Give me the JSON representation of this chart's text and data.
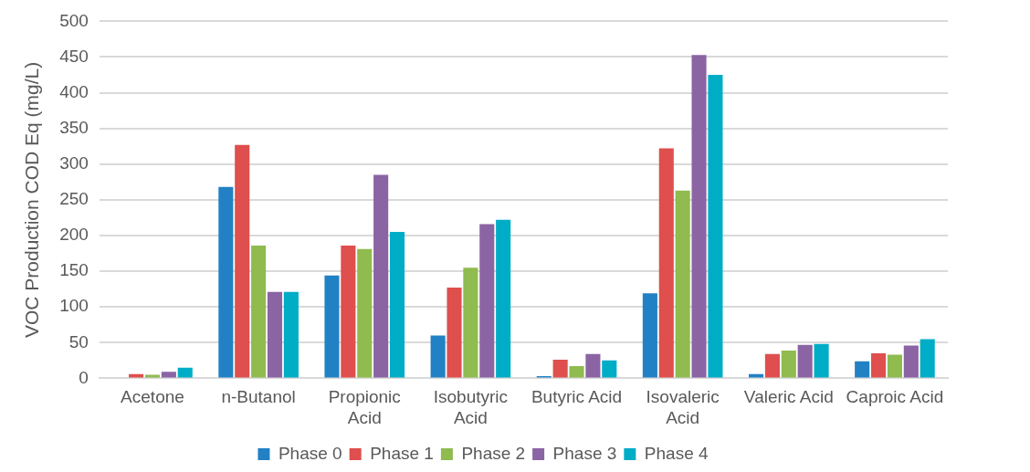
{
  "chart_data": {
    "type": "bar",
    "ylabel": "VOC Production COD Eq (mg/L)",
    "categories": [
      "Acetone",
      "n-Butanol",
      "Propionic Acid",
      "Isobutyric Acid",
      "Butyric Acid",
      "Isovaleric Acid",
      "Valeric Acid",
      "Caproic Acid"
    ],
    "series": [
      {
        "name": "Phase 0",
        "color": "#2281c4",
        "values": [
          0,
          268,
          144,
          60,
          3,
          119,
          6,
          24
        ]
      },
      {
        "name": "Phase 1",
        "color": "#de4f4d",
        "values": [
          6,
          327,
          186,
          127,
          26,
          322,
          34,
          35
        ]
      },
      {
        "name": "Phase 2",
        "color": "#8fbb4f",
        "values": [
          5,
          186,
          181,
          155,
          17,
          263,
          39,
          33
        ]
      },
      {
        "name": "Phase 3",
        "color": "#8b64a4",
        "values": [
          9,
          121,
          285,
          216,
          34,
          453,
          47,
          46
        ]
      },
      {
        "name": "Phase 4",
        "color": "#00adc6",
        "values": [
          15,
          121,
          205,
          222,
          25,
          425,
          48,
          55
        ]
      }
    ],
    "ylim": [
      0,
      500
    ],
    "yticks": [
      0,
      50,
      100,
      150,
      200,
      250,
      300,
      350,
      400,
      450,
      500
    ],
    "grid": "y",
    "legend": "bottom"
  }
}
